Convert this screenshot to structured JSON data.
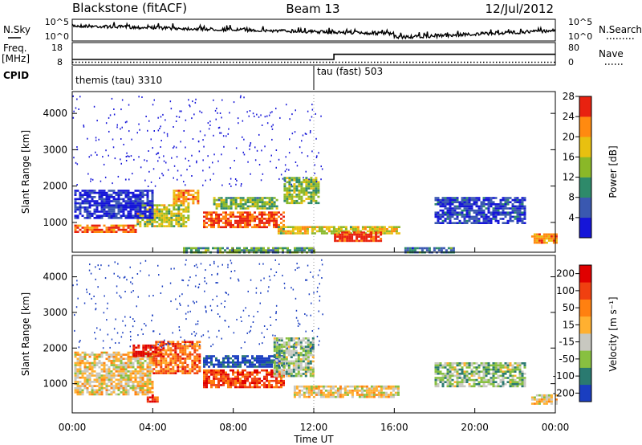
{
  "chart_data": [
    {
      "type": "line",
      "title_left": "Blackstone (fitACF)",
      "title_center": "Beam 13",
      "title_right": "12/Jul/2012",
      "left_label": "N.Sky",
      "right_label": "N.Search",
      "left_ticks": [
        "10^5",
        "10^0"
      ],
      "right_ticks": [
        "10^5",
        "10^0"
      ]
    },
    {
      "type": "line",
      "left_label_lines": [
        "Freq.",
        "[MHz]"
      ],
      "right_label": "Nave",
      "left_ticks": [
        "18",
        "8"
      ],
      "right_ticks": [
        "80",
        "0"
      ],
      "x_hours": [
        0,
        13,
        13,
        24
      ],
      "freq_mhz": [
        10.5,
        10.5,
        12.8,
        12.8
      ],
      "nave": [
        10,
        10,
        10,
        10
      ]
    },
    {
      "type": "table",
      "label": "CPID",
      "segments": [
        {
          "start_hour": 0,
          "text": "themis (tau) 3310"
        },
        {
          "start_hour": 12,
          "text": "tau (fast) 503"
        }
      ]
    },
    {
      "type": "heatmap",
      "ylabel": "Slant Range [km]",
      "ylim": [
        180,
        4600
      ],
      "y_ticks": [
        "1000",
        "2000",
        "3000",
        "4000"
      ],
      "colorbar_label": "Power [dB]",
      "colorbar_ticks": [
        "4",
        "8",
        "12",
        "16",
        "20",
        "24",
        "28"
      ],
      "colorbar_colors": [
        "#1515d8",
        "#3a58b0",
        "#2e8a6a",
        "#8ab828",
        "#e8c010",
        "#ff8a10",
        "#e82210"
      ],
      "bands": [
        {
          "t0": 0.1,
          "t1": 3.2,
          "r_lo": 720,
          "r_hi": 940,
          "level": 0.85
        },
        {
          "t0": 3.2,
          "t1": 5.8,
          "r_lo": 900,
          "r_hi": 1500,
          "level": 0.55
        },
        {
          "t0": 5.0,
          "t1": 6.3,
          "r_lo": 1500,
          "r_hi": 1900,
          "level": 0.75
        },
        {
          "t0": 0.1,
          "t1": 4.0,
          "r_lo": 1150,
          "r_hi": 1900,
          "level": 0.1
        },
        {
          "t0": 6.5,
          "t1": 10.5,
          "r_lo": 850,
          "r_hi": 1300,
          "level": 0.9
        },
        {
          "t0": 7.0,
          "t1": 10.2,
          "r_lo": 1400,
          "r_hi": 1700,
          "level": 0.45
        },
        {
          "t0": 10.5,
          "t1": 12.2,
          "r_lo": 1550,
          "r_hi": 2250,
          "level": 0.5
        },
        {
          "t0": 10.2,
          "t1": 16.2,
          "r_lo": 680,
          "r_hi": 900,
          "level": 0.6
        },
        {
          "t0": 13.0,
          "t1": 15.3,
          "r_lo": 500,
          "r_hi": 750,
          "level": 0.95
        },
        {
          "t0": 5.5,
          "t1": 12.0,
          "r_lo": 200,
          "r_hi": 320,
          "level": 0.4
        },
        {
          "t0": 16.5,
          "t1": 19.0,
          "r_lo": 200,
          "r_hi": 320,
          "level": 0.3
        },
        {
          "t0": 22.8,
          "t1": 24.0,
          "r_lo": 450,
          "r_hi": 700,
          "level": 0.75
        },
        {
          "t0": 18.0,
          "t1": 22.5,
          "r_lo": 1000,
          "r_hi": 1700,
          "level": 0.15
        }
      ]
    },
    {
      "type": "heatmap",
      "ylabel": "Slant Range [km]",
      "ylim": [
        180,
        4600
      ],
      "y_ticks": [
        "1000",
        "2000",
        "3000",
        "4000"
      ],
      "xlabel": "Time UT",
      "x_ticks": [
        "00:00",
        "04:00",
        "08:00",
        "12:00",
        "16:00",
        "20:00",
        "00:00"
      ],
      "colorbar_label": "Velocity [m s⁻¹]",
      "colorbar_ticks": [
        "200",
        "100",
        "50",
        "15",
        "-15",
        "-50",
        "-100",
        "-200"
      ],
      "colorbar_colors": [
        "#1a3ec0",
        "#2a7a70",
        "#88c040",
        "#c8c8c0",
        "#ffb030",
        "#ff8010",
        "#f04010",
        "#e00000"
      ],
      "bands": [
        {
          "t0": 0.1,
          "t1": 4.0,
          "r_lo": 700,
          "r_hi": 1900,
          "level": 0.5
        },
        {
          "t0": 3.0,
          "t1": 4.5,
          "r_lo": 1800,
          "r_hi": 2100,
          "level": 0.95
        },
        {
          "t0": 4.0,
          "t1": 6.3,
          "r_lo": 1300,
          "r_hi": 2200,
          "level": 0.75
        },
        {
          "t0": 6.5,
          "t1": 10.5,
          "r_lo": 900,
          "r_hi": 1400,
          "level": 0.82
        },
        {
          "t0": 6.5,
          "t1": 10.5,
          "r_lo": 1450,
          "r_hi": 1800,
          "level": 0.05
        },
        {
          "t0": 10.0,
          "t1": 12.0,
          "r_lo": 1200,
          "r_hi": 2300,
          "level": 0.35
        },
        {
          "t0": 11.0,
          "t1": 16.2,
          "r_lo": 650,
          "r_hi": 950,
          "level": 0.5
        },
        {
          "t0": 3.7,
          "t1": 4.2,
          "r_lo": 500,
          "r_hi": 700,
          "level": 0.85
        },
        {
          "t0": 22.8,
          "t1": 24.0,
          "r_lo": 450,
          "r_hi": 700,
          "level": 0.5
        },
        {
          "t0": 18.0,
          "t1": 22.5,
          "r_lo": 900,
          "r_hi": 1600,
          "level": 0.35
        }
      ]
    }
  ]
}
